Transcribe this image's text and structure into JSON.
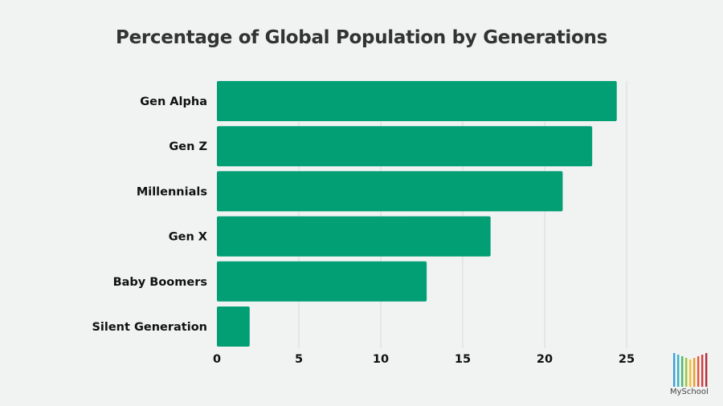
{
  "chart_data": {
    "type": "bar",
    "orientation": "horizontal",
    "title": "Percentage of Global Population by Generations",
    "categories": [
      "Gen Alpha",
      "Gen Z",
      "Millennials",
      "Gen X",
      "Baby Boomers",
      "Silent Generation"
    ],
    "values": [
      24.4,
      22.9,
      21.1,
      16.7,
      12.8,
      2.0
    ],
    "xlim": [
      0,
      25
    ],
    "xticks": [
      "0",
      "5",
      "10",
      "15",
      "20",
      "25"
    ],
    "xlabel": "",
    "ylabel": "",
    "grid": "vertical",
    "bar_color": "#029e74"
  },
  "logo": {
    "text": "MySchool",
    "colors": [
      "#3aa0dd",
      "#33b4c6",
      "#4db86a",
      "#9bc53d",
      "#f2c12e",
      "#f39a2b",
      "#e8553c",
      "#d43b3b",
      "#b52c3a"
    ]
  }
}
